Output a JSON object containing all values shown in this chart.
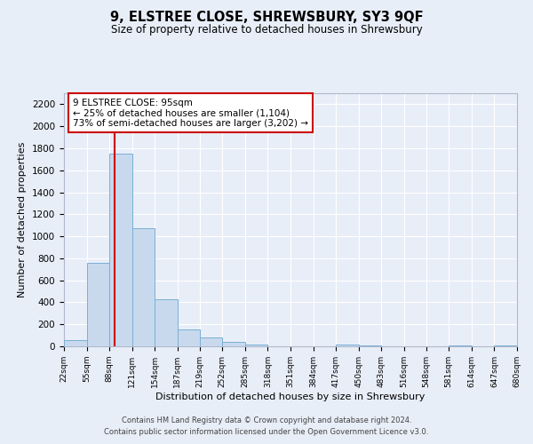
{
  "title": "9, ELSTREE CLOSE, SHREWSBURY, SY3 9QF",
  "subtitle": "Size of property relative to detached houses in Shrewsbury",
  "xlabel": "Distribution of detached houses by size in Shrewsbury",
  "ylabel": "Number of detached properties",
  "bar_color": "#c8d9ee",
  "bar_edge_color": "#7aafd4",
  "background_color": "#e8eef8",
  "grid_color": "#ffffff",
  "red_line_color": "#cc0000",
  "annotation_text_line1": "9 ELSTREE CLOSE: 95sqm",
  "annotation_text_line2": "← 25% of detached houses are smaller (1,104)",
  "annotation_text_line3": "73% of semi-detached houses are larger (3,202) →",
  "red_line_x": 95,
  "bin_edges": [
    22,
    55,
    88,
    121,
    154,
    187,
    219,
    252,
    285,
    318,
    351,
    384,
    417,
    450,
    483,
    516,
    548,
    581,
    614,
    647,
    680
  ],
  "bin_heights": [
    60,
    760,
    1750,
    1070,
    430,
    155,
    80,
    40,
    20,
    0,
    0,
    0,
    15,
    10,
    0,
    0,
    0,
    10,
    0,
    10
  ],
  "ylim": [
    0,
    2300
  ],
  "yticks": [
    0,
    200,
    400,
    600,
    800,
    1000,
    1200,
    1400,
    1600,
    1800,
    2000,
    2200
  ],
  "footer_line1": "Contains HM Land Registry data © Crown copyright and database right 2024.",
  "footer_line2": "Contains public sector information licensed under the Open Government Licence v3.0."
}
